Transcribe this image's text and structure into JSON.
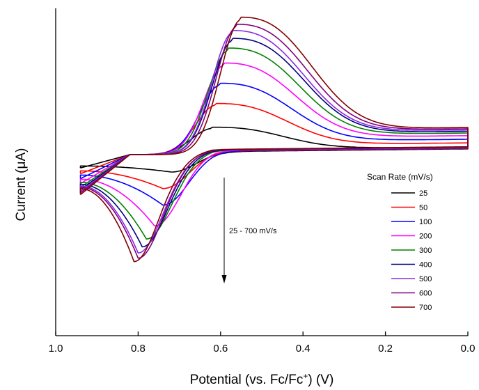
{
  "chart_data": {
    "type": "line",
    "xlabel_prefix": "Potential (vs. Fc/Fc",
    "xlabel_sup": "+",
    "xlabel_suffix": ") (V)",
    "ylabel": "Current (μA)",
    "xlim": [
      1.0,
      0.0
    ],
    "x_reversed": true,
    "xticks": [
      "1.0",
      "0.8",
      "0.6",
      "0.4",
      "0.2",
      "0.0"
    ],
    "y_tick_labels_shown": false,
    "grid": false,
    "legend": {
      "title": "Scan Rate (mV/s)",
      "placement": "right",
      "entries": [
        "25",
        "50",
        "100",
        "200",
        "300",
        "400",
        "500",
        "600",
        "700"
      ]
    },
    "annotation": {
      "text": "25 - 700 mV/s",
      "arrow_direction": "down"
    },
    "series": [
      {
        "name": "25",
        "color": "#000000",
        "scan_rate_mV_s": 25,
        "anodic_peak": {
          "x": 0.62,
          "y": 0.3
        },
        "cathodic_peak": {
          "x": 0.72,
          "y": -0.2
        }
      },
      {
        "name": "50",
        "color": "#ff0000",
        "scan_rate_mV_s": 50,
        "anodic_peak": {
          "x": 0.61,
          "y": 0.57
        },
        "cathodic_peak": {
          "x": 0.74,
          "y": -0.39
        }
      },
      {
        "name": "100",
        "color": "#0000ff",
        "scan_rate_mV_s": 100,
        "anodic_peak": {
          "x": 0.6,
          "y": 0.8
        },
        "cathodic_peak": {
          "x": 0.74,
          "y": -0.58
        }
      },
      {
        "name": "200",
        "color": "#ff00ff",
        "scan_rate_mV_s": 200,
        "anodic_peak": {
          "x": 0.59,
          "y": 1.03
        },
        "cathodic_peak": {
          "x": 0.76,
          "y": -0.82
        }
      },
      {
        "name": "300",
        "color": "#008000",
        "scan_rate_mV_s": 300,
        "anodic_peak": {
          "x": 0.58,
          "y": 1.2
        },
        "cathodic_peak": {
          "x": 0.78,
          "y": -0.97
        }
      },
      {
        "name": "400",
        "color": "#000080",
        "scan_rate_mV_s": 400,
        "anodic_peak": {
          "x": 0.57,
          "y": 1.31
        },
        "cathodic_peak": {
          "x": 0.79,
          "y": -1.06
        }
      },
      {
        "name": "500",
        "color": "#8a2be2",
        "scan_rate_mV_s": 500,
        "anodic_peak": {
          "x": 0.57,
          "y": 1.4
        },
        "cathodic_peak": {
          "x": 0.8,
          "y": -1.13
        }
      },
      {
        "name": "600",
        "color": "#800080",
        "scan_rate_mV_s": 600,
        "anodic_peak": {
          "x": 0.56,
          "y": 1.47
        },
        "cathodic_peak": {
          "x": 0.8,
          "y": -1.19
        }
      },
      {
        "name": "700",
        "color": "#800000",
        "scan_rate_mV_s": 700,
        "anodic_peak": {
          "x": 0.55,
          "y": 1.55
        },
        "cathodic_peak": {
          "x": 0.81,
          "y": -1.23
        }
      }
    ]
  }
}
